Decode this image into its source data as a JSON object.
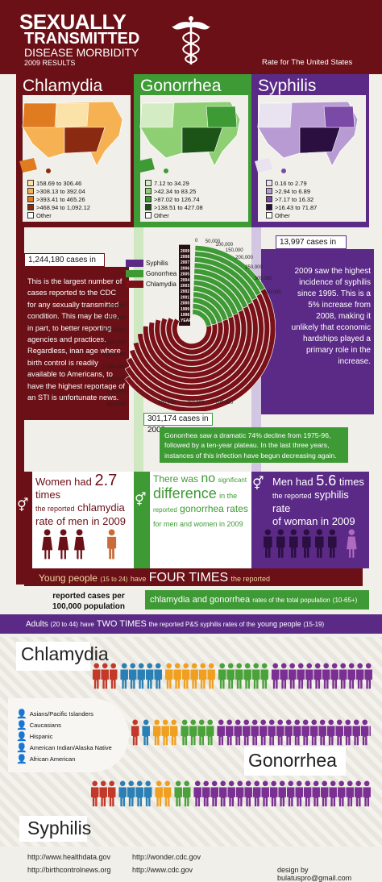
{
  "header": {
    "title_line1": "SEXUALLY",
    "title_line2": "TRANSMITTED",
    "title_line3": "DISEASE MORBIDITY",
    "title_line4": "2009 RESULTS",
    "subtitle": "Rate for The United States",
    "logo_icon": "caduceus-icon"
  },
  "colors": {
    "chlamydia": "#7a1018",
    "gonorrhea": "#3e9a34",
    "syphilis": "#5b2a86",
    "dark": "#6b1016"
  },
  "diseases": [
    {
      "name": "Chlamydia",
      "color": "#7a1018",
      "legend": [
        {
          "label": "158.69 to 306.46",
          "color": "#fbe2a8"
        },
        {
          "label": ">308.13 to 392.04",
          "color": "#f6b252"
        },
        {
          "label": ">393.41 to 465.26",
          "color": "#e07b1f"
        },
        {
          "label": ">468.94 to 1,092.12",
          "color": "#8a2a10"
        },
        {
          "label": "Other",
          "color": "#ffffff"
        }
      ]
    },
    {
      "name": "Gonorrhea",
      "color": "#3e9a34",
      "legend": [
        {
          "label": "7.12 to 34.29",
          "color": "#d4ecc4"
        },
        {
          "label": ">42.34 to 83.25",
          "color": "#8fcf74"
        },
        {
          "label": ">87.02 to 126.74",
          "color": "#3e9a34"
        },
        {
          "label": ">138.51 to 427.08",
          "color": "#1c5418"
        },
        {
          "label": "Other",
          "color": "#ffffff"
        }
      ]
    },
    {
      "name": "Syphilis",
      "color": "#5b2a86",
      "legend": [
        {
          "label": "0.16 to 2.79",
          "color": "#e9e2f1"
        },
        {
          "label": ">2.94 to 6.89",
          "color": "#b79bd2"
        },
        {
          "label": ">7.17 to 16.32",
          "color": "#7a4aa6"
        },
        {
          "label": ">16.43 to 71.87",
          "color": "#2a0f40"
        },
        {
          "label": "Other",
          "color": "#ffffff"
        }
      ]
    }
  ],
  "radial": {
    "legend": [
      "Syphilis",
      "Gonorrhea",
      "Chlamydia"
    ],
    "years": [
      "2009",
      "2008",
      "2007",
      "2006",
      "2005",
      "2004",
      "2003",
      "2002",
      "2001",
      "2000",
      "1999",
      "1998",
      "YEAR"
    ],
    "ticks_left": [
      "1,250,000",
      "1,200,000",
      "1,150,000",
      "1,100,000",
      "1,050,000",
      "1,000,000",
      "950,000",
      "900,000",
      "850,000"
    ],
    "ticks_bottom": [
      "800,000",
      "750,000",
      "700,000"
    ],
    "ticks_top": [
      "0",
      "50,000",
      "100,000",
      "150,000",
      "200,000",
      "250,000",
      "300,000",
      "350,000"
    ]
  },
  "stats": {
    "chlamydia_cases": "1,244,180 cases in 2009",
    "chlamydia_text": "This is the largest number of cases reported to the CDC for any sexually transmitted condition. This may be due, in part, to better reporting agencies and practices. Regardless, inan age where birth control is readily available to Americans, to have the highest reportage of an STI is unfortunate news.",
    "syphilis_cases": "13,997 cases in 2009",
    "syphilis_text": "2009 saw the highest incidence of syphilis since 1995. This is a 5% increase from 2008, making it unlikely that economic hardships played a primary role in the increase.",
    "gonorrhea_cases": "301,174 cases in 2009",
    "gonorrhea_text": "Gonorrhea saw a dramatic 74% decline from 1975-96, followed by a ten-year plateau. In the last three years, instances of this infection have begun decreasing again."
  },
  "gender": {
    "chlamydia": {
      "a": "Women had",
      "b": "2.7",
      "c": "times",
      "d": "the reported",
      "e": "chlamydia",
      "f": "rate of men in 2009"
    },
    "gonorrhea": {
      "a": "There was",
      "b": "no",
      "c": "significant",
      "d": "difference",
      "e": "in the",
      "f": "reported",
      "g": "gonorrhea rates",
      "h": "for men and women in 2009"
    },
    "syphilis": {
      "a": "Men had",
      "b": "5.6",
      "c": "times",
      "d": "the reported",
      "e": "syphilis rate",
      "f": "of woman in 2009"
    }
  },
  "age": {
    "young": "Young people",
    "young_range": "(15 to 24)",
    "have": "have",
    "four": "FOUR TIMES",
    "reported": "the reported",
    "cg": "chlamydia and gonorrhea",
    "rates_total": "rates of the total population",
    "total_range": "(10-65+)",
    "adults": "Adults",
    "adults_range": "(20 to 44)",
    "have2": "have",
    "two": "TWO TIMES",
    "ps": "the reported P&S syphilis rates of the",
    "young2": "young people",
    "young2_range": "(15-19)"
  },
  "per100k": "reported cases per\n100,000 population",
  "ethnicity": {
    "headings": [
      "Chlamydia",
      "Gonorrhea",
      "Syphilis"
    ],
    "legend": [
      {
        "label": "Asians/Pacific Islanders",
        "color": "#c2392a"
      },
      {
        "label": "Caucasians",
        "color": "#2a7fb4"
      },
      {
        "label": "Hispanic",
        "color": "#f0a020"
      },
      {
        "label": "American Indian/Alaska Native",
        "color": "#4aa23a"
      },
      {
        "label": "African American",
        "color": "#7a2f92"
      }
    ],
    "counts": {
      "chlamydia": [
        3,
        5,
        6,
        6,
        17
      ],
      "gonorrhea": [
        1,
        1,
        3,
        4,
        20
      ],
      "syphilis": [
        3,
        4,
        2,
        2,
        21
      ]
    }
  },
  "footer": {
    "links": [
      "http://www.healthdata.gov",
      "http://birthcontrolnews.org",
      "http://wonder.cdc.gov",
      "http://www.cdc.gov"
    ],
    "credit": "design by bulatuspro@gmail.com"
  }
}
